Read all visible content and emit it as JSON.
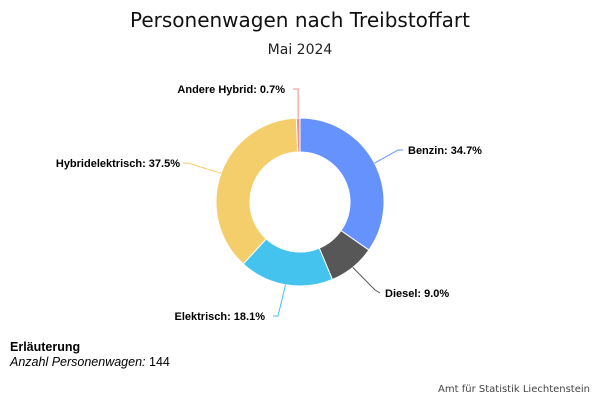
{
  "chart_data": {
    "type": "pie",
    "variant": "donut",
    "title": "Personenwagen nach Treibstoffart",
    "subtitle": "Mai 2024",
    "slices": [
      {
        "label": "Benzin",
        "value": 34.7,
        "color": "#6592fd"
      },
      {
        "label": "Diesel",
        "value": 9.0,
        "color": "#575757"
      },
      {
        "label": "Elektrisch",
        "value": 18.1,
        "color": "#44c3ef"
      },
      {
        "label": "Hybridelektrisch",
        "value": 37.5,
        "color": "#f4ce6b"
      },
      {
        "label": "Andere Hybrid",
        "value": 0.7,
        "color": "#f08c8c"
      }
    ],
    "unit": "%",
    "legend": "none"
  },
  "note": {
    "heading": "Erläuterung",
    "key": "Anzahl Personenwagen:",
    "value": "144"
  },
  "source": "Amt für Statistik Liechtenstein"
}
